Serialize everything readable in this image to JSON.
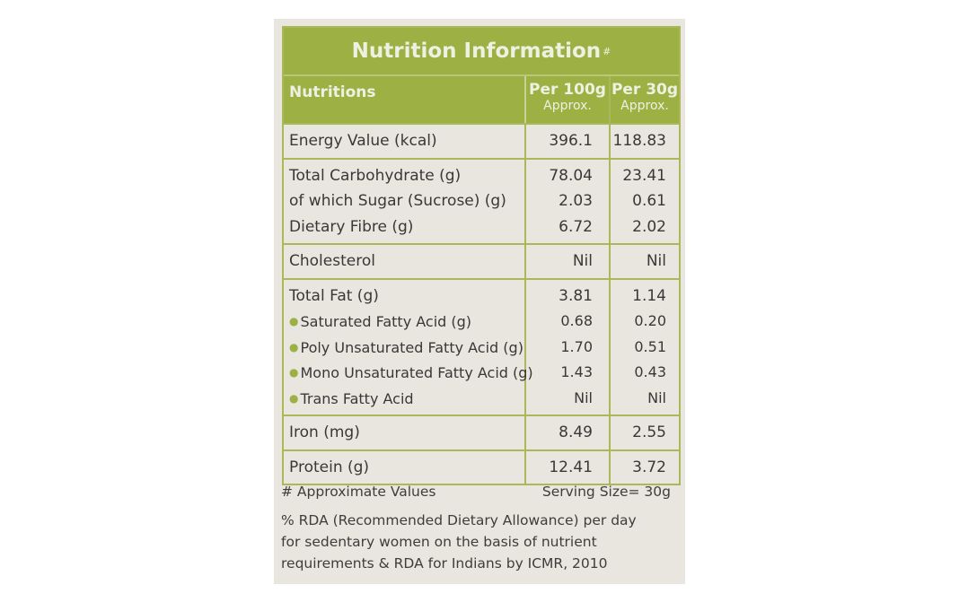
{
  "title": "Nutrition Information",
  "title_mark": "#",
  "header": {
    "col1": "Nutritions",
    "col2": "Per 100g",
    "col2_sub": "Approx.",
    "col3": "Per 30g",
    "col3_sub": "Approx."
  },
  "groups": [
    [
      {
        "name": "Energy Value (kcal)",
        "per100": "396.1",
        "per30": "118.83"
      }
    ],
    [
      {
        "name": "Total Carbohydrate (g)",
        "per100": "78.04",
        "per30": "23.41"
      },
      {
        "name": "of which Sugar (Sucrose) (g)",
        "per100": "2.03",
        "per30": "0.61"
      },
      {
        "name": "Dietary Fibre (g)",
        "per100": "6.72",
        "per30": "2.02"
      }
    ],
    [
      {
        "name": "Cholesterol",
        "per100": "Nil",
        "per30": "Nil"
      }
    ],
    [
      {
        "name": "Total Fat (g)",
        "per100": "3.81",
        "per30": "1.14"
      },
      {
        "name": "Saturated Fatty Acid (g)",
        "per100": "0.68",
        "per30": "0.20",
        "sub": true
      },
      {
        "name": "Poly Unsaturated Fatty Acid (g)",
        "per100": "1.70",
        "per30": "0.51",
        "sub": true
      },
      {
        "name": "Mono Unsaturated Fatty Acid (g)",
        "per100": "1.43",
        "per30": "0.43",
        "sub": true
      },
      {
        "name": "Trans Fatty Acid",
        "per100": "Nil",
        "per30": "Nil",
        "sub": true
      }
    ],
    [
      {
        "name": "Iron (mg)",
        "per100": "8.49",
        "per30": "2.55"
      }
    ],
    [
      {
        "name": "Protein (g)",
        "per100": "12.41",
        "per30": "3.72"
      }
    ]
  ],
  "footer": {
    "approx_note": "# Approximate Values",
    "serving_size": "Serving Size= 30g",
    "rda_lines": [
      "% RDA (Recommended Dietary Allowance) per day",
      "for sedentary women on the basis of nutrient",
      "requirements & RDA for Indians by ICMR, 2010"
    ]
  },
  "colors": {
    "green": "#9db043",
    "card": "#e8e6df"
  }
}
